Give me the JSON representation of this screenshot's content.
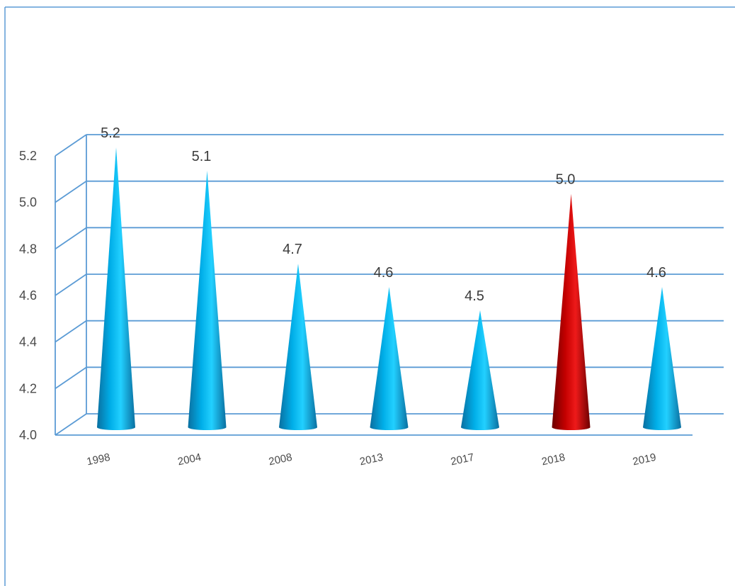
{
  "chart_data": {
    "type": "bar",
    "style": "3d-cone",
    "title": "",
    "xlabel": "",
    "ylabel": "",
    "categories": [
      "1998",
      "2004",
      "2008",
      "2013",
      "2017",
      "2018",
      "2019"
    ],
    "values": [
      5.2,
      5.1,
      4.7,
      4.6,
      4.5,
      5.0,
      4.6
    ],
    "value_labels": [
      "5.2",
      "5.1",
      "4.7",
      "4.6",
      "4.5",
      "5.0",
      "4.6"
    ],
    "ylim": [
      4.0,
      5.2
    ],
    "yticks": [
      "4.0",
      "4.2",
      "4.4",
      "4.6",
      "4.8",
      "5.0",
      "5.2"
    ],
    "grid": true,
    "legend": "none",
    "colors": {
      "default": "#00b4f0",
      "highlight": "#cc0000",
      "grid": "#5b9bd5",
      "axis": "#5b9bd5",
      "frame": "#5b9bd5"
    },
    "highlight_category": "2018"
  }
}
